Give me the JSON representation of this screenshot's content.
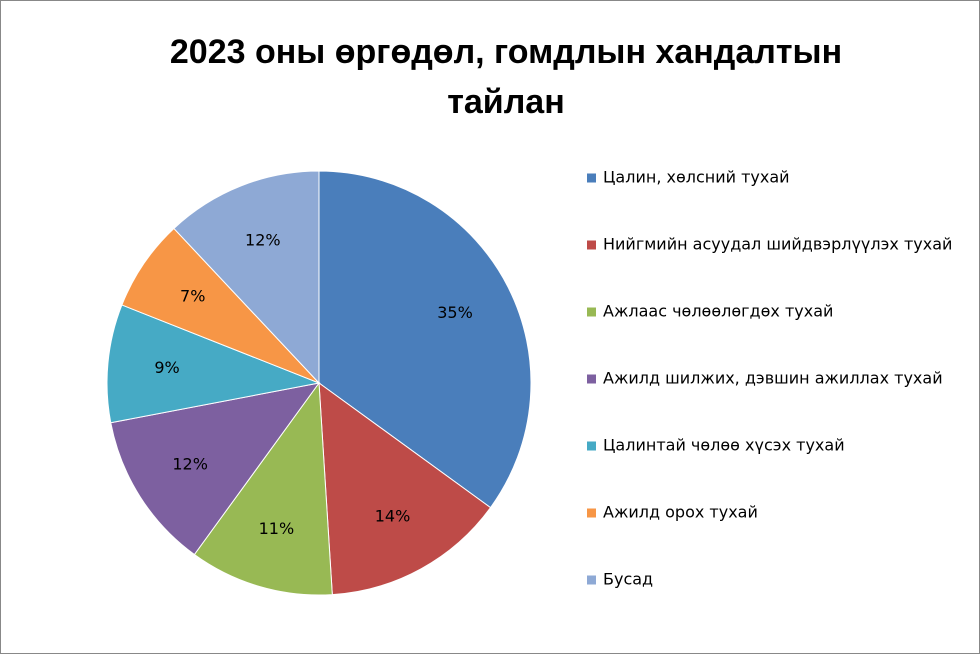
{
  "chart_data": {
    "type": "pie",
    "title": "2023 оны өргөдөл, гомдлын хандалтын тайлан",
    "categories": [
      "Цалин, хөлсний тухай",
      "Нийгмийн асуудал шийдвэрлүүлэх тухай",
      "Ажлаас чөлөөлөгдөх тухай",
      "Ажилд шилжих, дэвшин ажиллах тухай",
      "Цалинтай чөлөө хүсэх тухай",
      "Ажилд орох тухай",
      "Бусад"
    ],
    "values": [
      35,
      14,
      11,
      12,
      9,
      7,
      12
    ],
    "value_labels": [
      "35%",
      "14%",
      "11%",
      "12%",
      "9%",
      "7%",
      "12%"
    ],
    "colors": [
      "#4a7ebb",
      "#be4b48",
      "#98b954",
      "#7d60a0",
      "#46aac5",
      "#f79646",
      "#8ea9d5"
    ],
    "legend": "right"
  }
}
